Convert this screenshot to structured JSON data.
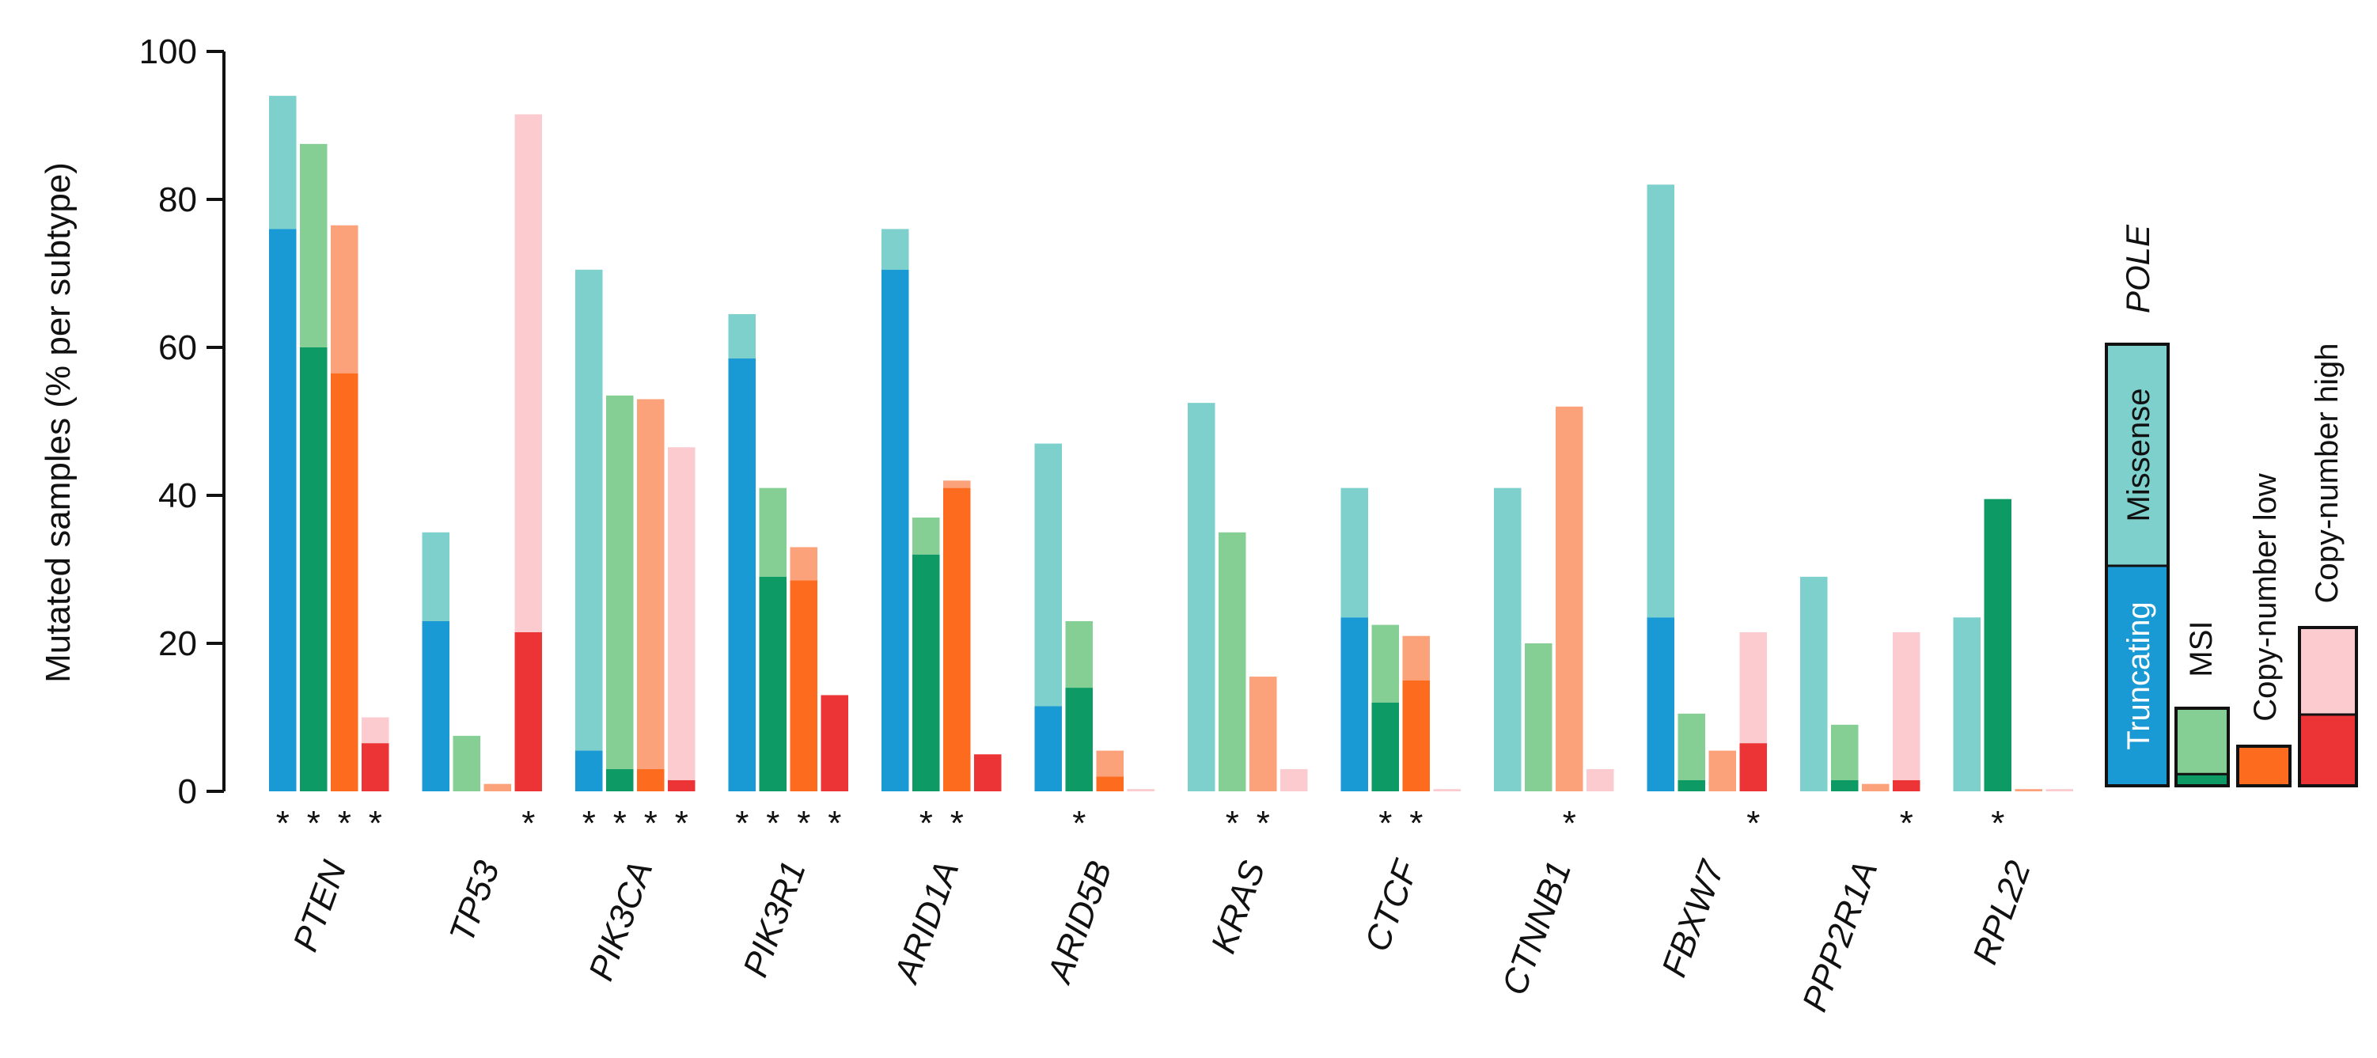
{
  "chart_data": {
    "type": "bar",
    "ylabel": "Mutated samples  (% per subtype)",
    "ylim": [
      0,
      100
    ],
    "yticks": [
      "0",
      "20",
      "40",
      "60",
      "80",
      "100"
    ],
    "categories": [
      "PTEN",
      "TP53",
      "PIK3CA",
      "PIK3R1",
      "ARID1A",
      "ARID5B",
      "KRAS",
      "CTCF",
      "CTNNB1",
      "FBXW7",
      "PPP2R1A",
      "RPL22"
    ],
    "series": [
      {
        "name": "POLE",
        "color_missense": "#7dd0cc",
        "color_truncating": "#1a9ad4",
        "truncating": [
          76,
          23,
          5.5,
          58.5,
          70.5,
          11.5,
          0,
          23.5,
          0,
          23.5,
          0,
          0
        ],
        "total": [
          94,
          35,
          70.5,
          64.5,
          76,
          47,
          52.5,
          41,
          41,
          82,
          29,
          23.5
        ]
      },
      {
        "name": "MSI",
        "color_missense": "#85cf95",
        "color_truncating": "#0d9a64",
        "truncating": [
          60,
          0,
          3,
          29,
          32,
          14,
          0,
          12,
          0,
          1.5,
          1.5,
          39.5
        ],
        "total": [
          87.5,
          7.5,
          53.5,
          41,
          37,
          23,
          35,
          22.5,
          20,
          10.5,
          9,
          39.5
        ]
      },
      {
        "name": "Copy-number low",
        "color_missense": "#fca27a",
        "color_truncating": "#fd6b1f",
        "truncating": [
          56.5,
          0,
          3,
          28.5,
          41,
          2,
          0,
          15,
          0,
          0,
          0,
          0
        ],
        "total": [
          76.5,
          1,
          53,
          33,
          42,
          5.5,
          15.5,
          21,
          52,
          5.5,
          1,
          0.3
        ]
      },
      {
        "name": "Copy-number high",
        "color_missense": "#fccbcf",
        "color_truncating": "#ec3436",
        "truncating": [
          6.5,
          21.5,
          1.5,
          13,
          5,
          0,
          0,
          0,
          0,
          6.5,
          1.5,
          0
        ],
        "total": [
          10,
          91.5,
          46.5,
          13,
          5,
          0.3,
          3,
          0.3,
          3,
          21.5,
          21.5,
          0.3
        ]
      }
    ],
    "significance": [
      [
        true,
        true,
        true,
        true
      ],
      [
        false,
        false,
        false,
        true
      ],
      [
        true,
        true,
        true,
        true
      ],
      [
        true,
        true,
        true,
        true
      ],
      [
        false,
        true,
        true,
        false
      ],
      [
        false,
        true,
        false,
        false
      ],
      [
        false,
        true,
        true,
        false
      ],
      [
        false,
        true,
        true,
        false
      ],
      [
        false,
        false,
        true,
        false
      ],
      [
        false,
        false,
        false,
        true
      ],
      [
        false,
        false,
        false,
        true
      ],
      [
        false,
        true,
        false,
        false
      ]
    ],
    "star_symbol": "*",
    "legend": {
      "placement": "right",
      "pole_label": "POLE",
      "missense_label": "Missense",
      "truncating_label": "Truncating",
      "msi_label": "MSI",
      "cnl_label": "Copy-number low",
      "cnh_label": "Copy-number high",
      "msi_truncating_fraction": 0.15,
      "cnl_truncating_fraction": 1.0,
      "cnh_truncating_fraction": 0.45
    }
  }
}
